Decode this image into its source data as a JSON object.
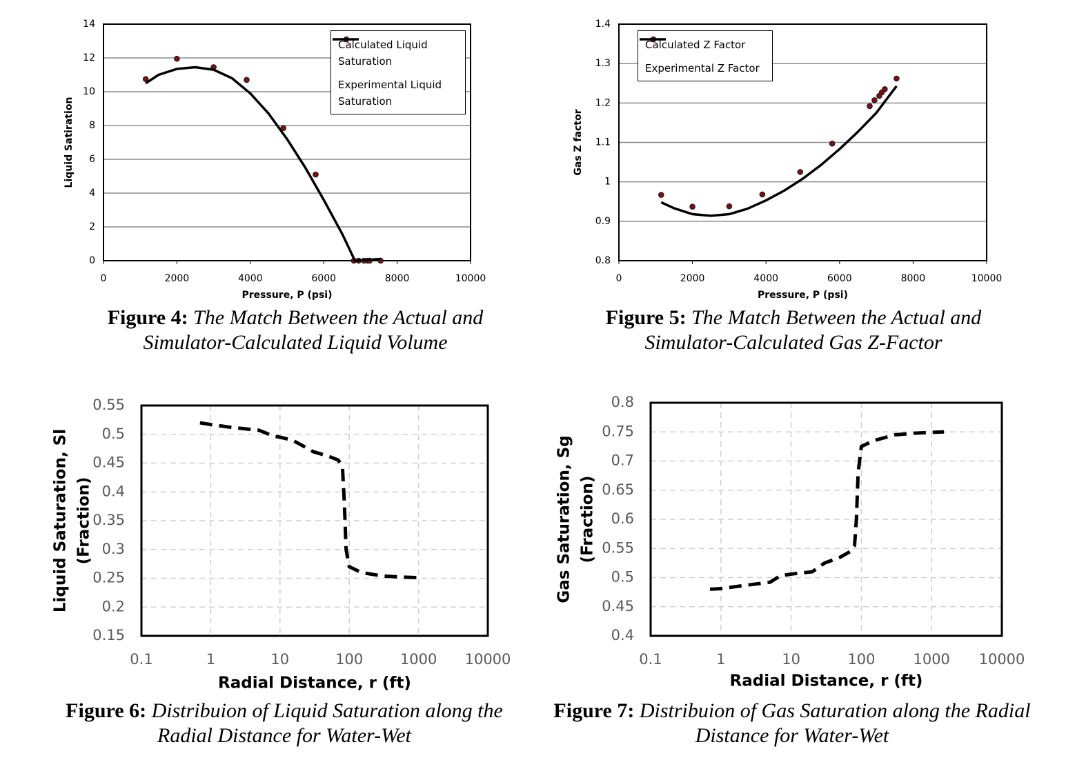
{
  "chart_data": [
    {
      "type": "scatter",
      "figure_label": "Figure 4:",
      "caption": "The Match Between the Actual and Simulator-Calculated Liquid Volume",
      "xlabel": "Pressure, P (psi)",
      "ylabel": [
        "Liquid Satiration"
      ],
      "xlim": [
        0,
        10000
      ],
      "xticks": [
        0,
        2000,
        4000,
        6000,
        8000,
        10000
      ],
      "ylim": [
        0,
        14
      ],
      "yticks": [
        0,
        2,
        4,
        6,
        8,
        10,
        12,
        14
      ],
      "grid": "y",
      "grid_linestyle": "solid",
      "legend": "upper right",
      "series": [
        {
          "name": "Calculated Liquid Saturation",
          "type": "scatter",
          "color": "#7b0f14",
          "x": [
            1150,
            2000,
            3000,
            3900,
            4900,
            5780,
            6820,
            6950,
            7100,
            7200,
            7250,
            7550
          ],
          "values": [
            10.75,
            11.95,
            11.45,
            10.7,
            7.85,
            5.1,
            0,
            0,
            0,
            0,
            0,
            0
          ]
        },
        {
          "name": "Experimental Liquid Saturation",
          "type": "line",
          "linestyle": "solid",
          "color": "#000000",
          "x": [
            1150,
            1500,
            2000,
            2500,
            3000,
            3500,
            4000,
            4500,
            5000,
            5500,
            6000,
            6500,
            6850,
            7550
          ],
          "values": [
            10.5,
            11.0,
            11.35,
            11.45,
            11.3,
            10.8,
            9.9,
            8.7,
            7.2,
            5.5,
            3.6,
            1.6,
            0,
            0.1
          ]
        }
      ]
    },
    {
      "type": "scatter",
      "figure_label": "Figure 5:",
      "caption": "The Match Between the Actual and Simulator-Calculated Gas Z-Factor",
      "xlabel": "Pressure, P (psi)",
      "ylabel": [
        "Gas Z factor"
      ],
      "xlim": [
        0,
        10000
      ],
      "xticks": [
        0,
        2000,
        4000,
        6000,
        8000,
        10000
      ],
      "ylim": [
        0.8,
        1.4
      ],
      "yticks": [
        0.8,
        0.9,
        1,
        1.1,
        1.2,
        1.3,
        1.4
      ],
      "grid": "y",
      "grid_linestyle": "solid",
      "legend": "upper left",
      "series": [
        {
          "name": "Calculated Z Factor",
          "type": "scatter",
          "color": "#7b0f14",
          "x": [
            1150,
            2000,
            3000,
            3900,
            4930,
            5800,
            6820,
            6950,
            7080,
            7150,
            7230,
            7550
          ],
          "values": [
            0.967,
            0.937,
            0.938,
            0.968,
            1.025,
            1.097,
            1.192,
            1.207,
            1.218,
            1.227,
            1.235,
            1.262
          ]
        },
        {
          "name": "Experimental Z Factor",
          "type": "line",
          "linestyle": "solid",
          "color": "#000000",
          "x": [
            1150,
            1500,
            2000,
            2500,
            3000,
            3500,
            4000,
            4500,
            5000,
            5500,
            6000,
            6500,
            7000,
            7550
          ],
          "values": [
            0.948,
            0.933,
            0.918,
            0.914,
            0.918,
            0.932,
            0.953,
            0.978,
            1.008,
            1.043,
            1.083,
            1.127,
            1.175,
            1.243
          ]
        }
      ]
    },
    {
      "type": "line",
      "figure_label": "Figure 6:",
      "caption": "Distribuion of Liquid Saturation along the Radial Distance for Water-Wet",
      "xlabel": "Radial Distance, r (ft)",
      "ylabel": [
        "Liquid Saturation, Sl",
        "(Fraction)"
      ],
      "xscale": "log",
      "xlim": [
        0.1,
        10000
      ],
      "xticks": [
        0.1,
        1,
        10,
        100,
        1000,
        10000
      ],
      "ylim": [
        0.15,
        0.55
      ],
      "yticks": [
        0.15,
        0.2,
        0.25,
        0.3,
        0.35,
        0.4,
        0.45,
        0.5,
        0.55
      ],
      "grid": "both",
      "grid_linestyle": "dashed",
      "series": [
        {
          "type": "line",
          "linestyle": "dashed",
          "color": "#000000",
          "x": [
            0.7,
            1,
            2,
            5,
            8,
            10,
            15,
            20,
            30,
            50,
            70,
            80,
            85,
            90,
            100,
            150,
            300,
            600,
            1000
          ],
          "values": [
            0.52,
            0.517,
            0.512,
            0.507,
            0.497,
            0.495,
            0.49,
            0.482,
            0.47,
            0.462,
            0.455,
            0.44,
            0.38,
            0.3,
            0.27,
            0.26,
            0.254,
            0.252,
            0.251
          ]
        }
      ]
    },
    {
      "type": "line",
      "figure_label": "Figure 7:",
      "caption": "Distribuion of Gas Saturation along the Radial Distance for Water-Wet",
      "xlabel": "Radial Distance, r (ft)",
      "ylabel": [
        "Gas Saturation, Sg",
        "(Fraction)"
      ],
      "xscale": "log",
      "xlim": [
        0.1,
        10000
      ],
      "xticks": [
        0.1,
        1,
        10,
        100,
        1000,
        10000
      ],
      "ylim": [
        0.4,
        0.8
      ],
      "yticks": [
        0.4,
        0.45,
        0.5,
        0.55,
        0.6,
        0.65,
        0.7,
        0.75,
        0.8
      ],
      "grid": "both",
      "grid_linestyle": "dashed",
      "series": [
        {
          "type": "line",
          "linestyle": "dashed",
          "color": "#000000",
          "x": [
            0.7,
            1,
            2,
            5,
            7,
            10,
            20,
            30,
            50,
            70,
            80,
            85,
            90,
            100,
            150,
            300,
            600,
            1500
          ],
          "values": [
            0.48,
            0.481,
            0.486,
            0.492,
            0.503,
            0.506,
            0.51,
            0.525,
            0.535,
            0.545,
            0.555,
            0.6,
            0.68,
            0.725,
            0.735,
            0.745,
            0.748,
            0.75
          ]
        }
      ]
    }
  ]
}
